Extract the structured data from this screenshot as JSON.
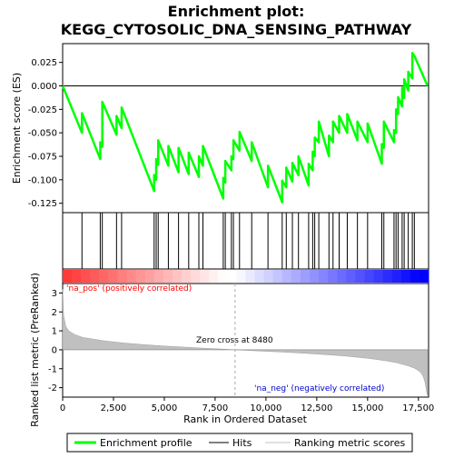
{
  "chart_data": {
    "type": "line",
    "title": "Enrichment plot:\nKEGG_CYTOSOLIC_DNA_SENSING_PATHWAY",
    "title_lines": [
      "Enrichment plot:",
      "KEGG_CYTOSOLIC_DNA_SENSING_PATHWAY"
    ],
    "xlabel": "Rank in Ordered Dataset",
    "ylabel_top": "Enrichment score (ES)",
    "ylabel_bottom": "Ranked list metric (PreRanked)",
    "xlim": [
      0,
      18000
    ],
    "x_ticks": [
      0,
      2500,
      5000,
      7500,
      10000,
      12500,
      15000,
      17500
    ],
    "x_tick_labels": [
      "0",
      "2,500",
      "5,000",
      "7,500",
      "10,000",
      "12,500",
      "15,000",
      "17,500"
    ],
    "es_ylim": [
      -0.135,
      0.045
    ],
    "es_ticks": [
      0.025,
      0.0,
      -0.025,
      -0.05,
      -0.075,
      -0.1,
      -0.125
    ],
    "es_tick_labels": [
      "0.025",
      "0.000",
      "-0.025",
      "-0.050",
      "-0.075",
      "-0.100",
      "-0.125"
    ],
    "metric_ylim": [
      -2.5,
      3.5
    ],
    "metric_ticks": [
      3,
      2,
      1,
      0,
      -1,
      -2
    ],
    "metric_tick_labels": [
      "3",
      "2",
      "1",
      "0",
      "-1",
      "-2"
    ],
    "hits": [
      950,
      1850,
      1950,
      2650,
      2900,
      4500,
      4600,
      4700,
      5200,
      5700,
      6200,
      6700,
      6900,
      7900,
      8000,
      8300,
      8400,
      8700,
      9300,
      10100,
      10800,
      11000,
      11300,
      11600,
      12100,
      12300,
      12400,
      12600,
      13100,
      13300,
      13600,
      14000,
      14500,
      15000,
      15700,
      15800,
      16300,
      16400,
      16500,
      16700,
      16800,
      17000,
      17200,
      17300
    ],
    "es_curve": {
      "x": [
        0,
        950,
        951,
        1850,
        1851,
        1950,
        1951,
        2650,
        2651,
        2900,
        2901,
        4500,
        4501,
        4600,
        4601,
        4700,
        4701,
        5200,
        5201,
        5700,
        5701,
        6200,
        6201,
        6700,
        6701,
        6900,
        6901,
        7900,
        7901,
        8000,
        8001,
        8300,
        8301,
        8400,
        8401,
        8700,
        8701,
        9300,
        9301,
        10100,
        10101,
        10800,
        10801,
        11000,
        11001,
        11300,
        11301,
        11600,
        11601,
        12100,
        12101,
        12300,
        12301,
        12400,
        12401,
        12600,
        12601,
        13100,
        13101,
        13300,
        13301,
        13600,
        13601,
        14000,
        14001,
        14500,
        14501,
        15000,
        15001,
        15700,
        15701,
        15800,
        15801,
        16300,
        16301,
        16400,
        16401,
        16500,
        16501,
        16700,
        16701,
        16800,
        16801,
        17000,
        17001,
        17200,
        17201,
        17300,
        17301,
        17950
      ],
      "y": [
        0.0,
        -0.05,
        -0.029,
        -0.078,
        -0.06,
        -0.065,
        -0.017,
        -0.052,
        -0.032,
        -0.045,
        -0.023,
        -0.112,
        -0.095,
        -0.1,
        -0.078,
        -0.084,
        -0.058,
        -0.085,
        -0.064,
        -0.092,
        -0.066,
        -0.094,
        -0.071,
        -0.097,
        -0.075,
        -0.085,
        -0.064,
        -0.12,
        -0.098,
        -0.103,
        -0.08,
        -0.09,
        -0.075,
        -0.078,
        -0.058,
        -0.069,
        -0.049,
        -0.08,
        -0.06,
        -0.108,
        -0.085,
        -0.124,
        -0.101,
        -0.108,
        -0.087,
        -0.102,
        -0.082,
        -0.095,
        -0.075,
        -0.106,
        -0.083,
        -0.09,
        -0.07,
        -0.075,
        -0.055,
        -0.06,
        -0.038,
        -0.075,
        -0.053,
        -0.06,
        -0.038,
        -0.05,
        -0.032,
        -0.05,
        -0.03,
        -0.058,
        -0.038,
        -0.06,
        -0.04,
        -0.083,
        -0.062,
        -0.066,
        -0.038,
        -0.06,
        -0.047,
        -0.05,
        -0.025,
        -0.03,
        -0.012,
        -0.022,
        -0.002,
        -0.013,
        0.007,
        -0.005,
        0.015,
        0.008,
        0.035,
        0.032,
        0.032,
        0.0
      ]
    },
    "metric_curve": {
      "x": [
        0,
        50,
        150,
        300,
        600,
        1000,
        2000,
        3000,
        4000,
        5000,
        6000,
        7000,
        8000,
        8480,
        9000,
        10000,
        11000,
        12000,
        13000,
        14000,
        15000,
        15500,
        16000,
        16500,
        17000,
        17300,
        17500,
        17650,
        17750,
        17820,
        17870,
        17920,
        17950
      ],
      "y": [
        3.2,
        1.8,
        1.25,
        1.0,
        0.8,
        0.65,
        0.48,
        0.36,
        0.27,
        0.2,
        0.14,
        0.08,
        0.03,
        0.0,
        -0.03,
        -0.08,
        -0.13,
        -0.19,
        -0.26,
        -0.34,
        -0.45,
        -0.52,
        -0.6,
        -0.7,
        -0.85,
        -0.97,
        -1.1,
        -1.25,
        -1.45,
        -1.7,
        -2.0,
        -2.3,
        -2.4
      ]
    },
    "annotations": {
      "pos_label": "'na_pos' (positively correlated)",
      "neg_label": "'na_neg' (negatively correlated)",
      "zero_cross_label": "Zero cross at 8480",
      "zero_cross_x": 8480
    },
    "legend": [
      {
        "name": "Enrichment profile",
        "color": "#00ff00"
      },
      {
        "name": "Hits",
        "color": "#000000"
      },
      {
        "name": "Ranking metric scores",
        "color": "#c0c0c0"
      }
    ],
    "colors": {
      "es_line": "#00ff00",
      "hit_line": "#000000",
      "metric_fill": "#c0c0c0",
      "pos_text": "#ff0000",
      "neg_text": "#0000cc"
    }
  }
}
